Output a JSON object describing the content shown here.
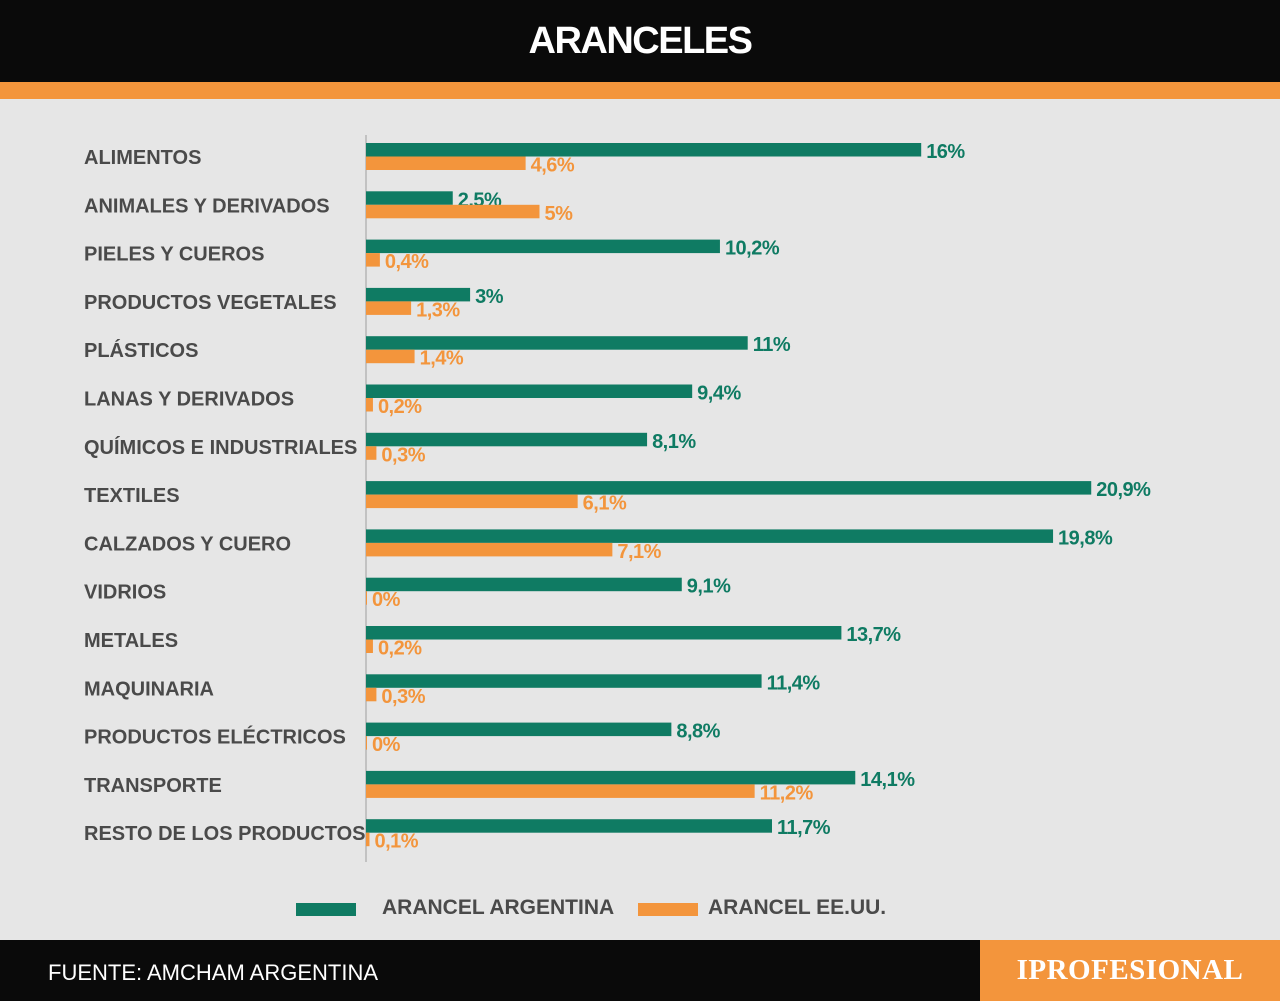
{
  "header": {
    "title": "ARANCELES"
  },
  "footer": {
    "source": "FUENTE: AMCHAM ARGENTINA",
    "brand": "IPROFESIONAL"
  },
  "colors": {
    "argentina": "#0f7b63",
    "usa": "#f3953c",
    "header_bg": "#0a0a0a",
    "background": "#e6e6e6"
  },
  "chart_data": {
    "type": "bar",
    "orientation": "horizontal",
    "title": "ARANCELES",
    "categories": [
      "ALIMENTOS",
      "ANIMALES Y DERIVADOS",
      "PIELES Y CUEROS",
      "PRODUCTOS VEGETALES",
      "PLÁSTICOS",
      "LANAS Y DERIVADOS",
      "QUÍMICOS E INDUSTRIALES",
      "TEXTILES",
      "CALZADOS Y CUERO",
      "VIDRIOS",
      "METALES",
      "MAQUINARIA",
      "PRODUCTOS ELÉCTRICOS",
      "TRANSPORTE",
      "RESTO DE LOS PRODUCTOS"
    ],
    "series": [
      {
        "name": "ARANCEL ARGENTINA",
        "values": [
          16,
          2.5,
          10.2,
          3,
          11,
          9.4,
          8.1,
          20.9,
          19.8,
          9.1,
          13.7,
          11.4,
          8.8,
          14.1,
          11.7
        ],
        "labels": [
          "16%",
          "2,5%",
          "10,2%",
          "3%",
          "11%",
          "9,4%",
          "8,1%",
          "20,9%",
          "19,8%",
          "9,1%",
          "13,7%",
          "11,4%",
          "8,8%",
          "14,1%",
          "11,7%"
        ]
      },
      {
        "name": "ARANCEL EE.UU.",
        "values": [
          4.6,
          5,
          0.4,
          1.3,
          1.4,
          0.2,
          0.3,
          6.1,
          7.1,
          0,
          0.2,
          0.3,
          0,
          11.2,
          0.1
        ],
        "labels": [
          "4,6%",
          "5%",
          "0,4%",
          "1,3%",
          "1,4%",
          "0,2%",
          "0,3%",
          "6,1%",
          "7,1%",
          "0%",
          "0,2%",
          "0,3%",
          "0%",
          "11,2%",
          "0,1%"
        ]
      }
    ],
    "xlim": [
      0,
      21
    ],
    "grid": false,
    "legend_position": "bottom"
  }
}
